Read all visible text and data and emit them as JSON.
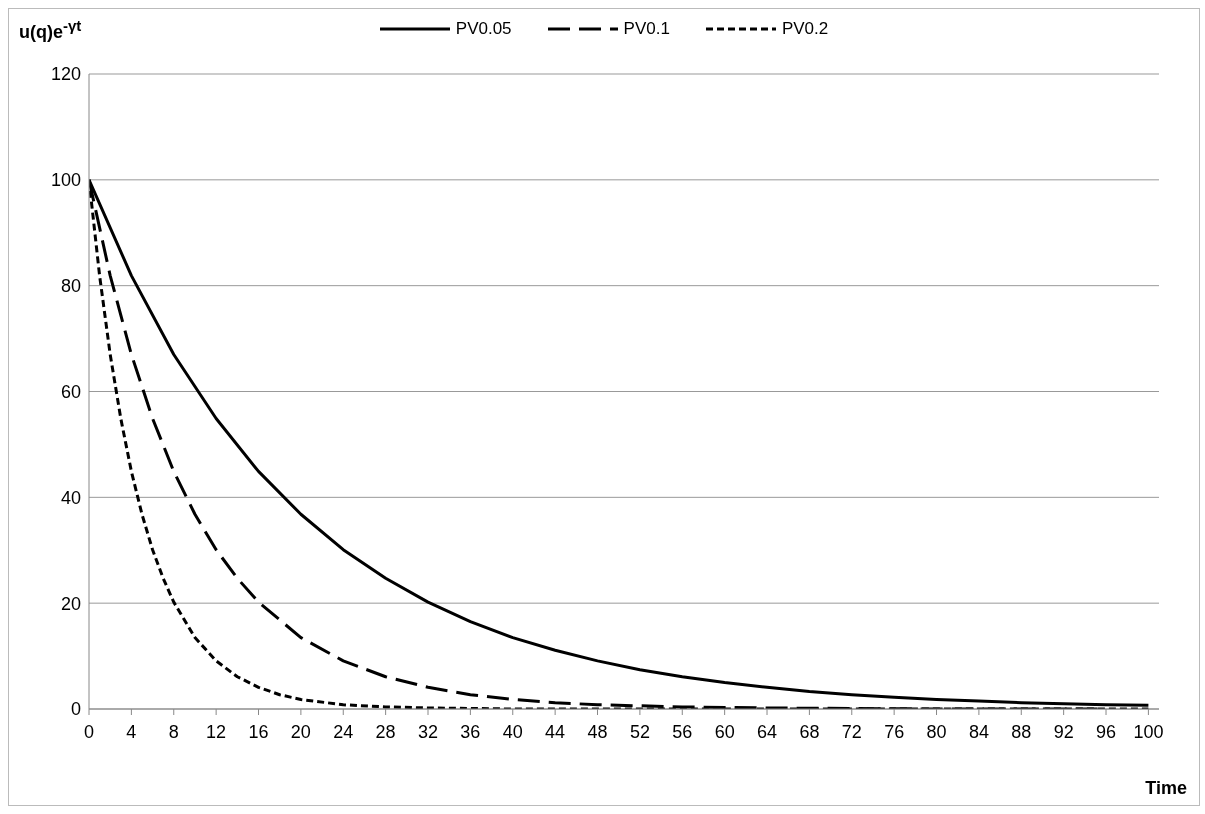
{
  "chart_data": {
    "type": "line",
    "ylabel": "u(q)e$^{-γt}$",
    "xlabel": "Time",
    "xlim": [
      0,
      101
    ],
    "xticks": [
      0,
      4,
      8,
      12,
      16,
      20,
      24,
      28,
      32,
      36,
      40,
      44,
      48,
      52,
      56,
      60,
      64,
      68,
      72,
      76,
      80,
      84,
      88,
      92,
      96,
      100
    ],
    "ylim": [
      0,
      120
    ],
    "yticks": [
      0,
      20,
      40,
      60,
      80,
      100,
      120
    ],
    "grid": "y",
    "legend": "top",
    "marker": "none",
    "series": [
      {
        "name": "PV0.05",
        "color": "#000000",
        "line_style": "solid",
        "x": [
          0,
          4,
          8,
          12,
          16,
          20,
          24,
          28,
          32,
          36,
          40,
          44,
          48,
          52,
          56,
          60,
          64,
          68,
          72,
          76,
          80,
          84,
          88,
          92,
          96,
          100
        ],
        "values": [
          100,
          81.9,
          67.0,
          54.9,
          44.9,
          36.8,
          30.1,
          24.7,
          20.2,
          16.5,
          13.5,
          11.1,
          9.1,
          7.4,
          6.1,
          5.0,
          4.1,
          3.3,
          2.7,
          2.2,
          1.8,
          1.5,
          1.2,
          1.0,
          0.8,
          0.7
        ]
      },
      {
        "name": "PV0.1",
        "color": "#000000",
        "line_style": "dashed",
        "x": [
          0,
          2,
          4,
          6,
          8,
          10,
          12,
          14,
          16,
          20,
          24,
          28,
          32,
          36,
          40,
          44,
          48,
          56,
          64,
          72,
          80,
          96
        ],
        "values": [
          100,
          81.9,
          67.0,
          54.9,
          44.9,
          36.8,
          30.1,
          24.7,
          20.2,
          13.5,
          9.1,
          6.1,
          4.1,
          2.7,
          1.8,
          1.2,
          0.8,
          0.4,
          0.2,
          0.1,
          0,
          0
        ]
      },
      {
        "name": "PV0.2",
        "color": "#000000",
        "line_style": "dotted",
        "x": [
          0,
          1,
          2,
          3,
          4,
          5,
          6,
          7,
          8,
          10,
          12,
          14,
          16,
          18,
          20,
          24,
          28,
          32,
          40,
          100
        ],
        "values": [
          100,
          81.9,
          67.0,
          54.9,
          44.9,
          36.8,
          30.1,
          24.7,
          20.2,
          13.5,
          9.1,
          6.1,
          4.1,
          2.7,
          1.8,
          0.8,
          0.4,
          0.2,
          0,
          0
        ]
      }
    ]
  }
}
